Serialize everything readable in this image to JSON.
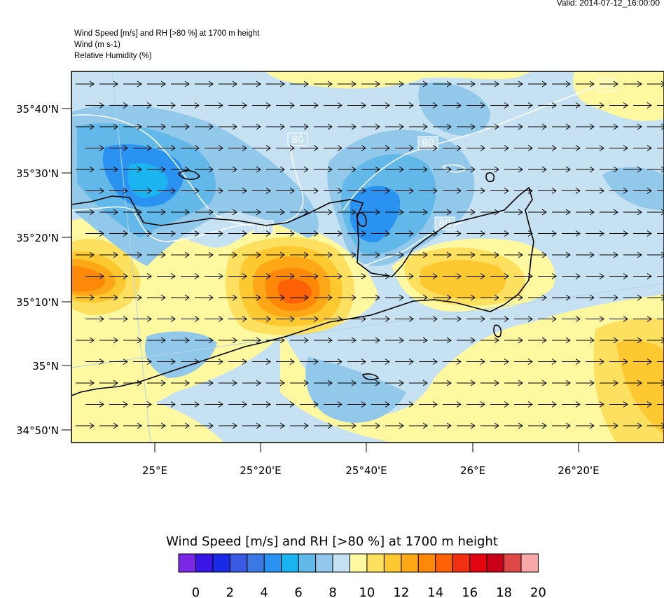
{
  "valid_time": "Valid: 2014-07-12_16:00:00",
  "header": {
    "line1": "Wind Speed [m/s] and RH [>80 %] at 1700 m height",
    "line2": "Wind   (m s-1)",
    "line3": "Relative Humidity   (%)"
  },
  "map": {
    "lat_labels": [
      "35°40'N",
      "35°30'N",
      "35°20'N",
      "35°10'N",
      "35°N",
      "34°50'N"
    ],
    "lon_labels": [
      "25°E",
      "25°20'E",
      "25°40'E",
      "26°E",
      "26°20'E"
    ],
    "rh_contour_label": "80",
    "wind_direction": "east",
    "background_class_color": "#c6e2f2"
  },
  "colorbar": {
    "title": "Wind Speed [m/s] and RH [>80 %] at 1700 m height",
    "colors": [
      "#7a28e6",
      "#3a16e6",
      "#1a2ae6",
      "#3a5ae6",
      "#3a78e6",
      "#2a92f0",
      "#1ab4f0",
      "#62b8e8",
      "#92c8ea",
      "#c6e2f2",
      "#fef8a0",
      "#fee060",
      "#fec830",
      "#fea818",
      "#fe8808",
      "#fe6208",
      "#f03010",
      "#e40410",
      "#c80018",
      "#e04848",
      "#f8a8a8"
    ],
    "tick_labels": [
      "0",
      "2",
      "4",
      "6",
      "8",
      "10",
      "12",
      "14",
      "16",
      "18",
      "20"
    ]
  },
  "chart_data": {
    "type": "heatmap",
    "title": "Wind Speed [m/s] and RH [>80 %] at 1700 m height",
    "units": "m/s",
    "color_range": [
      0,
      20
    ],
    "lat_ticks": [
      "35°40'N",
      "35°30'N",
      "35°20'N",
      "35°10'N",
      "35°N",
      "34°50'N"
    ],
    "lon_ticks": [
      "25°E",
      "25°20'E",
      "25°40'E",
      "26°E",
      "26°20'E"
    ],
    "rh_contour_level": 80
  }
}
